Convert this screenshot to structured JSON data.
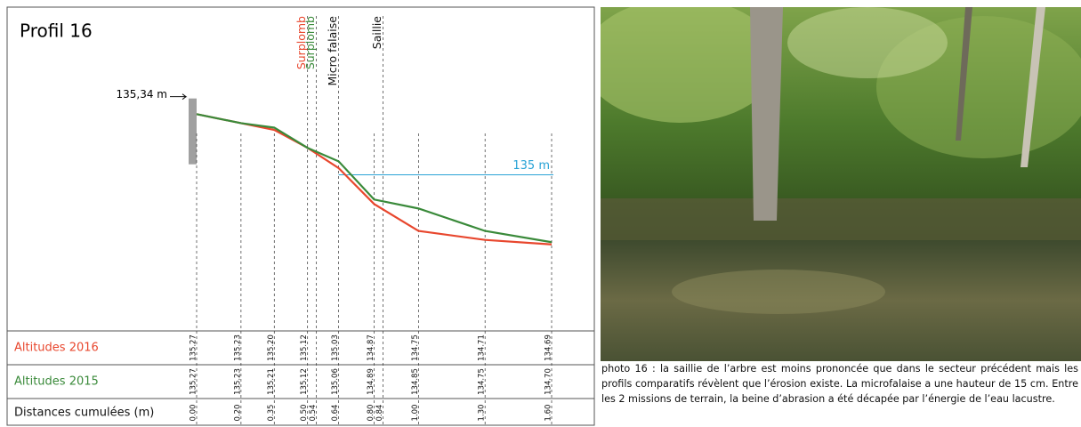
{
  "figure": {
    "title": "Profil 16",
    "xlim": [
      0,
      1.6
    ],
    "ylim": [
      134.59,
      135.62
    ],
    "levels": [
      {
        "value": 135.34,
        "label": "135,34 m"
      },
      {
        "value": 135,
        "label": "135 m"
      }
    ],
    "annotations": [
      {
        "text": "Surplomb",
        "x": 0.5,
        "color": "#e8472e"
      },
      {
        "text": "Surplomb",
        "x": 0.54,
        "color": "#3a8a3a"
      },
      {
        "text": "Micro falaise",
        "x": 0.64,
        "color": "#111111"
      },
      {
        "text": "Saillie",
        "x": 0.84,
        "color": "#111111"
      }
    ],
    "table": {
      "rows": [
        {
          "label": "Altitudes 2016",
          "color": "#e8472e",
          "values": [
            "135.27",
            "135.23",
            "135.20",
            "135.12",
            null,
            "135.03",
            "134.87",
            null,
            "134.75",
            "134.71",
            "134.69"
          ]
        },
        {
          "label": "Altitudes 2015",
          "color": "#3a8a3a",
          "values": [
            "135.27",
            "135.23",
            "135.21",
            "135.12",
            null,
            "135.06",
            "134.89",
            null,
            "134.85",
            "134.75",
            "134.70"
          ]
        },
        {
          "label": "Distances cumulées (m)",
          "color": "#111111",
          "values": [
            "0.00",
            "0.20",
            "0.35",
            "0.50",
            "0.54",
            "0.64",
            "0.80",
            "0.84",
            "1.00",
            "1.30",
            "1.60"
          ]
        }
      ]
    }
  },
  "caption": "photo 16 : la saillie de l’arbre est moins prononcée que dans le secteur précédent mais les profils comparatifs révèlent que l’érosion existe. La microfalaise a une hauteur de 15 cm. Entre les 2 missions de terrain, la beine d’abrasion a été décapée par l’énergie de l’eau lacustre."
}
